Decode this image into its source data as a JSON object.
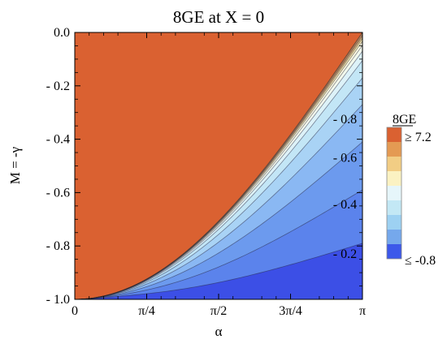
{
  "chart_data": {
    "type": "contour",
    "title": "8GE at X = 0",
    "xlabel": "α",
    "ylabel": "M = -γ",
    "xlim": [
      0,
      3.14159
    ],
    "ylim": [
      -1.0,
      0.0
    ],
    "x_ticks": [
      {
        "value": 0,
        "label": "0"
      },
      {
        "value": 0.7854,
        "label": "π/4"
      },
      {
        "value": 1.5708,
        "label": "π/2"
      },
      {
        "value": 2.3562,
        "label": "3π/4"
      },
      {
        "value": 3.14159,
        "label": "π"
      }
    ],
    "y_ticks": [
      {
        "value": 0.0,
        "label": "0.0"
      },
      {
        "value": -0.2,
        "label": "- 0.2"
      },
      {
        "value": -0.4,
        "label": "- 0.4"
      },
      {
        "value": -0.6,
        "label": "- 0.6"
      },
      {
        "value": -0.8,
        "label": "- 0.8"
      },
      {
        "value": -1.0,
        "label": "- 1.0"
      }
    ],
    "contour_levels": [
      -0.8,
      -0.6,
      -0.4,
      -0.2
    ],
    "contour_labels": [
      {
        "text": "- 0.8",
        "x": 2.95,
        "y": -0.34
      },
      {
        "text": "- 0.6",
        "x": 2.95,
        "y": -0.485
      },
      {
        "text": "- 0.4",
        "x": 2.95,
        "y": -0.66
      },
      {
        "text": "- 0.2",
        "x": 2.95,
        "y": -0.845
      }
    ],
    "legend": {
      "title": "8GE",
      "placement": "right",
      "max_label": "≥  7.2",
      "min_label": "≤ -0.8",
      "colors": [
        "#da6131",
        "#e49a53",
        "#f2cd84",
        "#fbf2c2",
        "#e6f6fa",
        "#c3e8f5",
        "#9dd1f2",
        "#75a8ec",
        "#3c58ea"
      ]
    },
    "colors": {
      "low": "#3c4fe6",
      "high": "#da6131",
      "mid": "#fffbe0"
    }
  }
}
